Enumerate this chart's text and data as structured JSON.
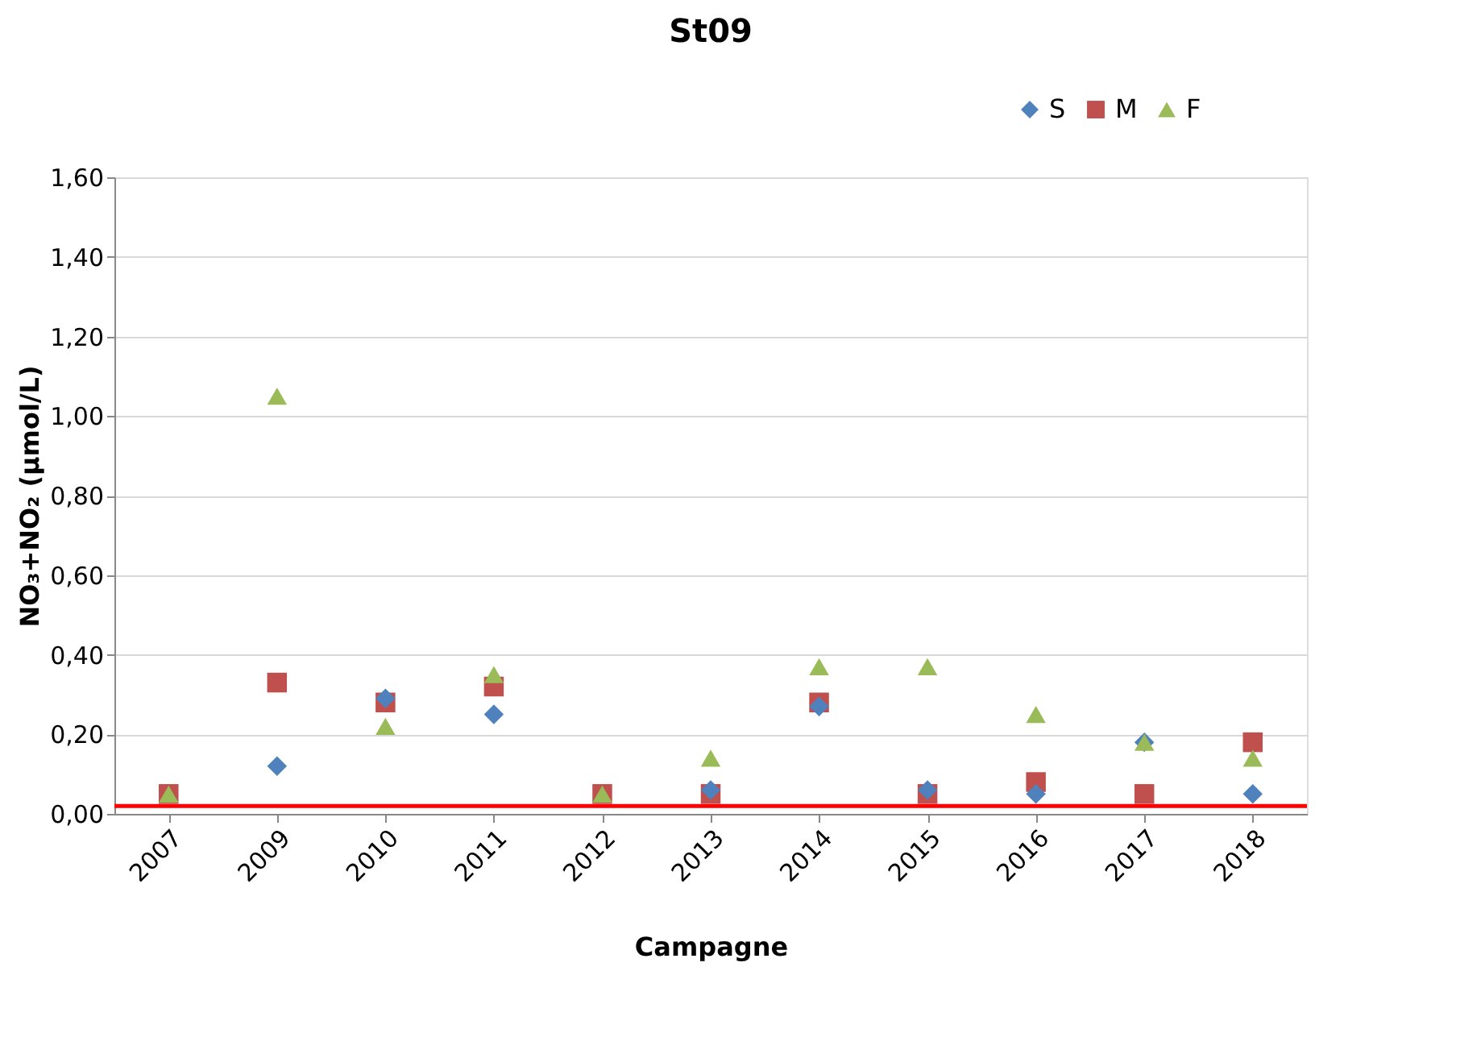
{
  "chart_data": {
    "type": "scatter",
    "title": "St09",
    "xlabel": "Campagne",
    "ylabel": "NO₃+NO₂ (µmol/L)",
    "categories": [
      "2007",
      "2009",
      "2010",
      "2011",
      "2012",
      "2013",
      "2014",
      "2015",
      "2016",
      "2017",
      "2018"
    ],
    "series": [
      {
        "name": "S",
        "color": "#4f81bd",
        "marker": "diamond",
        "values": [
          null,
          0.12,
          0.29,
          0.25,
          null,
          0.06,
          0.27,
          0.06,
          0.05,
          0.18,
          0.05
        ]
      },
      {
        "name": "M",
        "color": "#c0504d",
        "marker": "square",
        "values": [
          0.05,
          0.33,
          0.28,
          0.32,
          0.05,
          0.05,
          0.28,
          0.05,
          0.08,
          0.05,
          0.18
        ]
      },
      {
        "name": "F",
        "color": "#9bbb59",
        "marker": "triangle",
        "values": [
          0.05,
          1.05,
          0.22,
          0.35,
          0.05,
          0.14,
          0.37,
          0.37,
          0.25,
          0.18,
          0.14
        ]
      }
    ],
    "ylim": [
      0,
      1.6
    ],
    "yticks": [
      {
        "value": 0,
        "label": "0,00"
      },
      {
        "value": 0.2,
        "label": "0,20"
      },
      {
        "value": 0.4,
        "label": "0,40"
      },
      {
        "value": 0.6,
        "label": "0,60"
      },
      {
        "value": 0.8,
        "label": "0,80"
      },
      {
        "value": 1.0,
        "label": "1,00"
      },
      {
        "value": 1.2,
        "label": "1,20"
      },
      {
        "value": 1.4,
        "label": "1,40"
      },
      {
        "value": 1.6,
        "label": "1,60"
      }
    ],
    "ref_lines": [
      {
        "axis": "y",
        "value": 0.02,
        "color": "#ff0000"
      }
    ],
    "grid": "y",
    "legend": "top right"
  }
}
